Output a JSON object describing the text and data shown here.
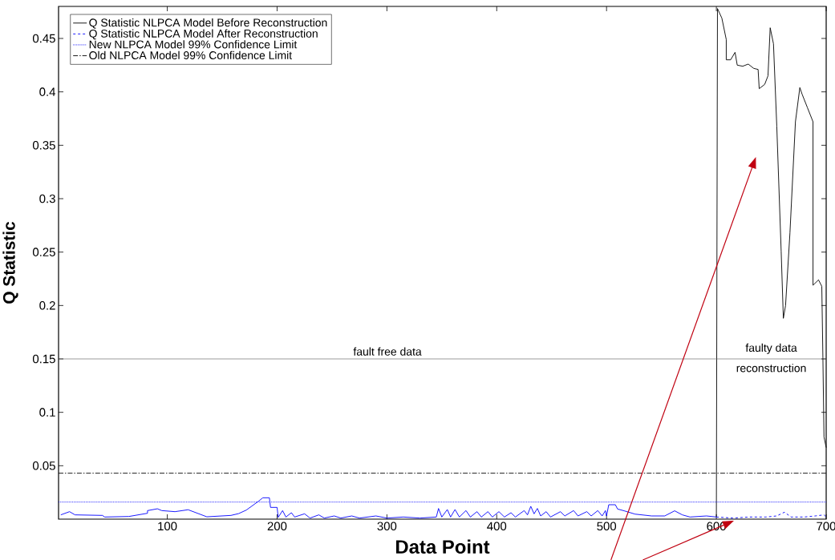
{
  "chart_data": {
    "type": "line",
    "xlabel": "Data Point",
    "ylabel": "Q Statistic",
    "xlim": [
      1,
      700
    ],
    "ylim": [
      0,
      0.48
    ],
    "xticks": [
      100,
      200,
      300,
      400,
      500,
      600,
      700
    ],
    "yticks": [
      0.05,
      0.1,
      0.15,
      0.2,
      0.25,
      0.3,
      0.35,
      0.4,
      0.45
    ],
    "legend": "top left",
    "grid": false,
    "marker": "none",
    "series": [
      {
        "name": "Q Statistic NLPCA Model Before Reconstruction",
        "color": "#000000",
        "line_style": "solid",
        "x": [
          600,
          601,
          605,
          609,
          609,
          613,
          617,
          619,
          624,
          629,
          634,
          638,
          639,
          644,
          647,
          649,
          652,
          655,
          659,
          661,
          663,
          667,
          672,
          676,
          678,
          683,
          688,
          688,
          693,
          696,
          697,
          698,
          700
        ],
        "values": [
          0.002,
          0.478,
          0.469,
          0.449,
          0.43,
          0.43,
          0.437,
          0.425,
          0.424,
          0.426,
          0.422,
          0.421,
          0.403,
          0.407,
          0.415,
          0.46,
          0.445,
          0.368,
          0.251,
          0.188,
          0.2,
          0.268,
          0.372,
          0.404,
          0.398,
          0.385,
          0.372,
          0.219,
          0.224,
          0.218,
          0.151,
          0.077,
          0.067
        ]
      },
      {
        "name": "Q Statistic NLPCA Model After Reconstruction",
        "color": "#0000ff",
        "line_style": "dashed",
        "x": [
          600,
          615,
          630,
          645,
          655,
          662,
          668,
          680,
          690,
          698,
          700
        ],
        "values": [
          0.002,
          0.001,
          0.002,
          0.002,
          0.003,
          0.0065,
          0.002,
          0.002,
          0.003,
          0.004,
          0.002
        ]
      },
      {
        "name": "New NLPCA Model 99% Confidence Limit",
        "color": "#0000ff",
        "line_style": "dotted",
        "x": [
          1,
          700
        ],
        "values": [
          0.016,
          0.016
        ]
      },
      {
        "name": "Old NLPCA Model 99% Confidence Limit",
        "color": "#000000",
        "line_style": "dashdot",
        "x": [
          1,
          700
        ],
        "values": [
          0.043,
          0.043
        ]
      },
      {
        "color": "#0000ff",
        "line_style": "solid",
        "x": [
          3,
          11,
          16,
          41,
          43,
          65,
          82,
          82,
          91,
          95,
          107,
          119,
          136,
          158,
          165,
          172,
          183,
          187,
          193,
          194,
          200,
          201,
          205,
          208,
          213,
          216,
          225,
          230,
          238,
          243,
          252,
          258,
          268,
          275,
          290,
          300,
          315,
          330,
          345,
          347,
          350,
          355,
          358,
          362,
          366,
          372,
          376,
          382,
          386,
          392,
          396,
          402,
          407,
          413,
          417,
          425,
          428,
          431,
          434,
          437,
          440,
          445,
          449,
          458,
          462,
          470,
          474,
          482,
          486,
          492,
          496,
          499,
          500,
          502,
          508,
          510,
          516,
          526,
          541,
          553,
          562,
          569,
          576,
          591,
          600
        ],
        "values": [
          0.004,
          0.007,
          0.004,
          0.0035,
          0.002,
          0.0025,
          0.0055,
          0.008,
          0.0097,
          0.008,
          0.007,
          0.0088,
          0.0022,
          0.0035,
          0.0052,
          0.0085,
          0.0167,
          0.02,
          0.02,
          0.011,
          0.011,
          0.0017,
          0.008,
          0.002,
          0.006,
          0.002,
          0.005,
          0.001,
          0.004,
          0.001,
          0.003,
          0.001,
          0.003,
          0.001,
          0.003,
          0.001,
          0.002,
          0.001,
          0.002,
          0.01,
          0.002,
          0.009,
          0.002,
          0.009,
          0.002,
          0.008,
          0.002,
          0.007,
          0.002,
          0.007,
          0.002,
          0.007,
          0.002,
          0.006,
          0.002,
          0.008,
          0.004,
          0.012,
          0.005,
          0.01,
          0.003,
          0.007,
          0.002,
          0.007,
          0.003,
          0.008,
          0.003,
          0.007,
          0.003,
          0.008,
          0.003,
          0.008,
          0.003,
          0.0135,
          0.0135,
          0.0095,
          0.0078,
          0.0047,
          0.003,
          0.003,
          0.0078,
          0.004,
          0.002,
          0.003,
          0.002
        ]
      }
    ],
    "ref_lines": [
      {
        "axis": "y",
        "value": 0.15,
        "label": "fault free data",
        "color": "#595959",
        "line_style": "solid"
      }
    ],
    "annotations": [
      "faulty data",
      "reconstruction"
    ]
  }
}
